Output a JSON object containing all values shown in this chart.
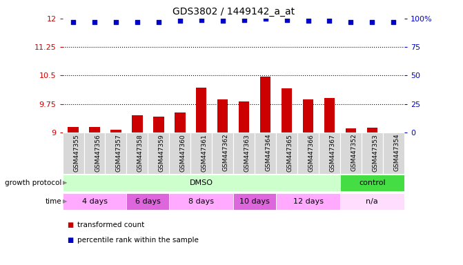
{
  "title": "GDS3802 / 1449142_a_at",
  "samples": [
    "GSM447355",
    "GSM447356",
    "GSM447357",
    "GSM447358",
    "GSM447359",
    "GSM447360",
    "GSM447361",
    "GSM447362",
    "GSM447363",
    "GSM447364",
    "GSM447365",
    "GSM447366",
    "GSM447367",
    "GSM447352",
    "GSM447353",
    "GSM447354"
  ],
  "bar_values": [
    9.15,
    9.15,
    9.08,
    9.45,
    9.42,
    9.52,
    10.18,
    9.88,
    9.82,
    10.48,
    10.17,
    9.88,
    9.9,
    9.1,
    9.13,
    9.0
  ],
  "dot_values": [
    97,
    97,
    97,
    97,
    97,
    98,
    99,
    98,
    99,
    100,
    99,
    98,
    98,
    97,
    97,
    97
  ],
  "bar_color": "#cc0000",
  "dot_color": "#0000cc",
  "ylim_left": [
    9.0,
    12.0
  ],
  "ylim_right": [
    0,
    100
  ],
  "yticks_left": [
    9.0,
    9.75,
    10.5,
    11.25,
    12.0
  ],
  "ytick_labels_left": [
    "9",
    "9.75",
    "10.5",
    "11.25",
    "12"
  ],
  "yticks_right": [
    0,
    25,
    50,
    75,
    100
  ],
  "ytick_labels_right": [
    "0",
    "25",
    "50",
    "75",
    "100%"
  ],
  "hlines": [
    9.75,
    10.5,
    11.25
  ],
  "growth_protocol_label": "growth protocol",
  "time_label": "time",
  "protocol_groups": [
    {
      "label": "DMSO",
      "start": 0,
      "end": 12,
      "color": "#ccffcc"
    },
    {
      "label": "control",
      "start": 13,
      "end": 15,
      "color": "#44dd44"
    }
  ],
  "time_groups": [
    {
      "label": "4 days",
      "start": 0,
      "end": 2,
      "color": "#ffaaff"
    },
    {
      "label": "6 days",
      "start": 3,
      "end": 4,
      "color": "#dd66dd"
    },
    {
      "label": "8 days",
      "start": 5,
      "end": 7,
      "color": "#ffaaff"
    },
    {
      "label": "10 days",
      "start": 8,
      "end": 9,
      "color": "#dd66dd"
    },
    {
      "label": "12 days",
      "start": 10,
      "end": 12,
      "color": "#ffaaff"
    },
    {
      "label": "n/a",
      "start": 13,
      "end": 15,
      "color": "#ffddff"
    }
  ],
  "legend_items": [
    {
      "label": "transformed count",
      "color": "#cc0000"
    },
    {
      "label": "percentile rank within the sample",
      "color": "#0000cc"
    }
  ],
  "sample_bg_color": "#d8d8d8",
  "axis_bg": "#ffffff"
}
